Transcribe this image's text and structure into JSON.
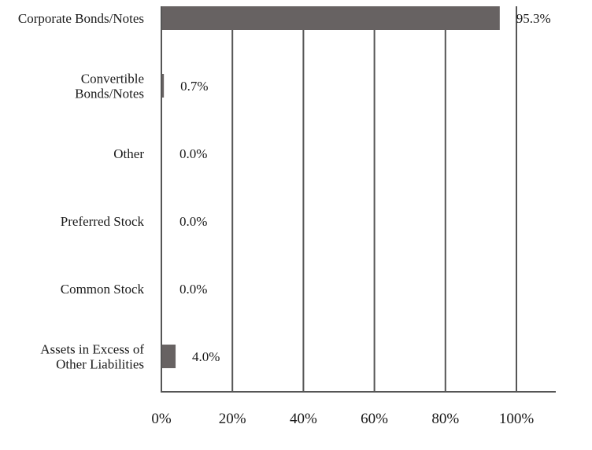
{
  "chart_data": {
    "type": "bar",
    "orientation": "horizontal",
    "categories": [
      [
        "Corporate Bonds/Notes"
      ],
      [
        "Convertible",
        "Bonds/Notes"
      ],
      [
        "Other"
      ],
      [
        "Preferred Stock"
      ],
      [
        "Common Stock"
      ],
      [
        "Assets in Excess of",
        "Other Liabilities"
      ]
    ],
    "values": [
      95.3,
      0.7,
      0.0,
      0.0,
      0.0,
      4.0
    ],
    "value_labels": [
      "95.3%",
      "0.7%",
      "0.0%",
      "0.0%",
      "0.0%",
      "4.0%"
    ],
    "x_ticks": [
      "0%",
      "20%",
      "40%",
      "60%",
      "80%",
      "100%"
    ],
    "xlim": [
      0,
      100
    ],
    "grid": "vertical",
    "bar_color": "#676262",
    "axis_color": "#555555"
  }
}
